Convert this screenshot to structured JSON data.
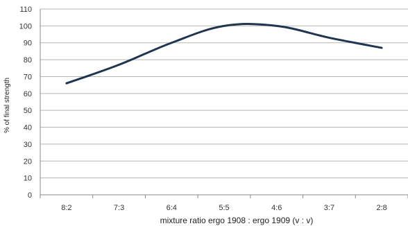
{
  "chart_data": {
    "type": "line",
    "categories": [
      "8:2",
      "7:3",
      "6:4",
      "5:5",
      "4:6",
      "3:7",
      "2:8"
    ],
    "series": [
      {
        "values": [
          66,
          77,
          90,
          100,
          100,
          93,
          87
        ],
        "color": "#1f3550"
      }
    ],
    "xlabel": "mixture ratio ergo 1908 : ergo 1909 (v : v)",
    "ylabel": "% of final strength",
    "ylim": [
      0,
      110
    ],
    "ytick_step": 10,
    "grid": true,
    "smooth": true
  }
}
